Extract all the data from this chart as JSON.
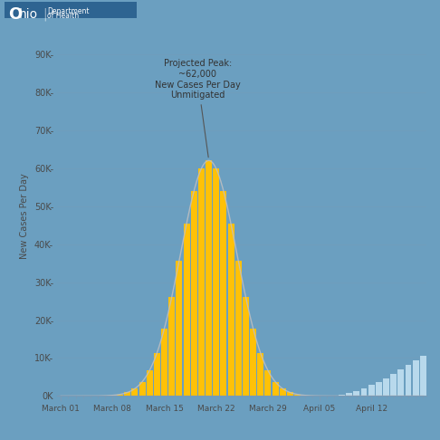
{
  "background_color": "#6b9fc0",
  "plot_bg_color": "#6b9fc0",
  "bar_color_orange": "#FFC107",
  "bar_color_blue": "#b8d9ec",
  "curve_color": "#a0a0a0",
  "title_box_color": "#2e6491",
  "title_box_color2": "#4a8ab5",
  "ylabel": "New Cases Per Day",
  "yticks": [
    0,
    10000,
    20000,
    30000,
    40000,
    50000,
    60000,
    70000,
    80000,
    90000
  ],
  "ytick_labels": [
    "0K",
    "10K-",
    "20K-",
    "30K-",
    "40K-",
    "50K-",
    "60K-",
    "70K-",
    "80K-",
    "90K-"
  ],
  "xtick_labels": [
    "March 01",
    "March 08",
    "March 15",
    "March 22",
    "March 29",
    "April 05",
    "April 12"
  ],
  "annotation_text": "Projected Peak:\n~62,000\nNew Cases Per Day\nUnmitigated",
  "peak_day": 20,
  "sigma_orange": 3.8,
  "peak_orange": 62000,
  "n_days": 50,
  "fig_width": 4.86,
  "fig_height": 4.86,
  "dpi": 100
}
